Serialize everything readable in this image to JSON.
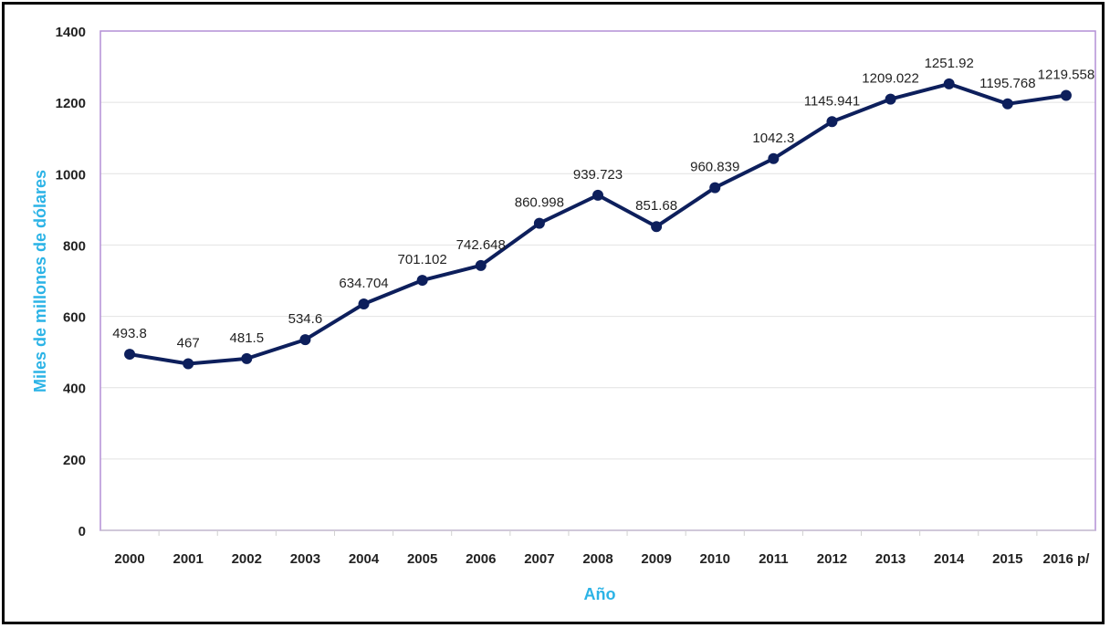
{
  "chart_data": {
    "type": "line",
    "categories": [
      "2000",
      "2001",
      "2002",
      "2003",
      "2004",
      "2005",
      "2006",
      "2007",
      "2008",
      "2009",
      "2010",
      "2011",
      "2012",
      "2013",
      "2014",
      "2015",
      "2016 p/"
    ],
    "series": [
      {
        "values": [
          493.8,
          467,
          481.5,
          534.6,
          634.704,
          701.102,
          742.648,
          860.998,
          939.723,
          851.68,
          960.839,
          1042.3,
          1145.941,
          1209.022,
          1251.92,
          1195.768,
          1219.558
        ],
        "labels": [
          "493.8",
          "467",
          "481.5",
          "534.6",
          "634.704",
          "701.102",
          "742.648",
          "860.998",
          "939.723",
          "851.68",
          "960.839",
          "1042.3",
          "1145.941",
          "1209.022",
          "1251.92",
          "1195.768",
          "1219.558"
        ],
        "color": "#0d1f5c"
      }
    ],
    "title": "",
    "xlabel": "Año",
    "ylabel": "Miles de millones de dólares",
    "ylim": [
      0,
      1400
    ],
    "yticks": [
      "0",
      "200",
      "400",
      "600",
      "800",
      "1000",
      "1200",
      "1400"
    ],
    "grid": true,
    "legend": "none",
    "plot_border_color": "#b38fd6",
    "grid_color": "#e2e2e2",
    "axis_title_color": "#2bb3e6"
  }
}
